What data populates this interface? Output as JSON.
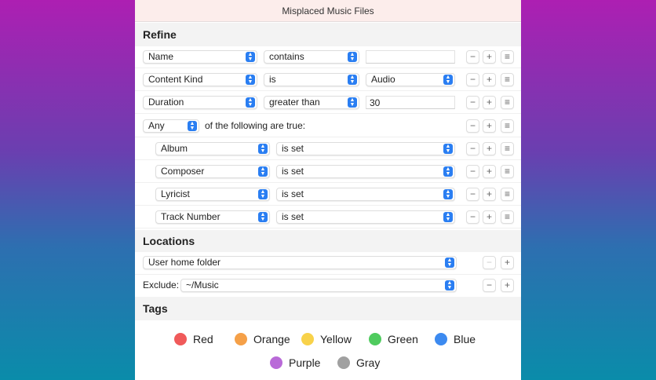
{
  "window": {
    "title": "Misplaced Music Files"
  },
  "refine": {
    "title": "Refine",
    "rows": [
      {
        "attr": "Name",
        "op": "contains",
        "value": ""
      },
      {
        "attr": "Content Kind",
        "op": "is",
        "value": "Audio"
      },
      {
        "attr": "Duration",
        "op": "greater than",
        "value": "30"
      }
    ],
    "group": {
      "quantifier": "Any",
      "text": "of the following are true:"
    },
    "subrows": [
      {
        "attr": "Album",
        "op": "is set"
      },
      {
        "attr": "Composer",
        "op": "is set"
      },
      {
        "attr": "Lyricist",
        "op": "is set"
      },
      {
        "attr": "Track Number",
        "op": "is set"
      }
    ]
  },
  "buttons": {
    "remove": "−",
    "add": "+",
    "more": "≡"
  },
  "locations": {
    "title": "Locations",
    "include": "User home folder",
    "exclude_label": "Exclude:",
    "exclude": "~/Music"
  },
  "tags": {
    "title": "Tags",
    "items": [
      {
        "label": "Red",
        "color": "#f05a5a"
      },
      {
        "label": "Orange",
        "color": "#f5a048"
      },
      {
        "label": "Yellow",
        "color": "#f8d24a"
      },
      {
        "label": "Green",
        "color": "#4fcb5e"
      },
      {
        "label": "Blue",
        "color": "#3c8af0"
      },
      {
        "label": "Purple",
        "color": "#b96ad8"
      },
      {
        "label": "Gray",
        "color": "#a0a0a0"
      }
    ]
  }
}
